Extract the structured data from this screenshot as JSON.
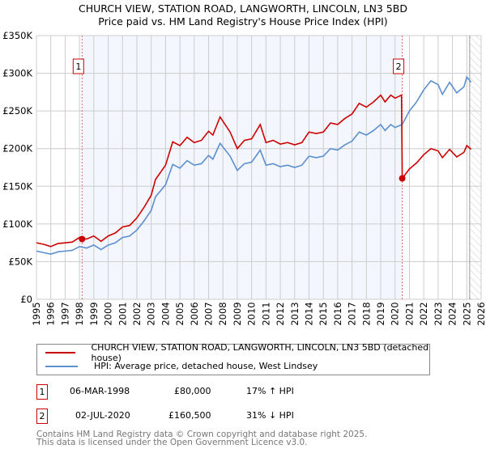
{
  "chart_data": {
    "type": "line",
    "title": "CHURCH VIEW, STATION ROAD, LANGWORTH, LINCOLN, LN3 5BD",
    "subtitle": "Price paid vs. HM Land Registry's House Price Index (HPI)",
    "xlim": [
      1995,
      2026
    ],
    "ylim": [
      0,
      350000
    ],
    "x_ticks": [
      "1995",
      "1996",
      "1997",
      "1998",
      "1999",
      "2000",
      "2001",
      "2002",
      "2003",
      "2004",
      "2005",
      "2006",
      "2007",
      "2008",
      "2009",
      "2010",
      "2011",
      "2012",
      "2013",
      "2014",
      "2015",
      "2016",
      "2017",
      "2018",
      "2019",
      "2020",
      "2021",
      "2022",
      "2023",
      "2024",
      "2025",
      "2026"
    ],
    "y_ticks": [
      {
        "v": 0,
        "label": "£0"
      },
      {
        "v": 50000,
        "label": "£50K"
      },
      {
        "v": 100000,
        "label": "£100K"
      },
      {
        "v": 150000,
        "label": "£150K"
      },
      {
        "v": 200000,
        "label": "£200K"
      },
      {
        "v": 250000,
        "label": "£250K"
      },
      {
        "v": 300000,
        "label": "£300K"
      },
      {
        "v": 350000,
        "label": "£350K"
      }
    ],
    "grid": true,
    "shaded_period": [
      1998.18,
      2020.5
    ],
    "forecast_hatch_from": 2025.2,
    "series": [
      {
        "name": "CHURCH VIEW, STATION ROAD, LANGWORTH, LINCOLN, LN3 5BD (detached house)",
        "color": "#cc0000",
        "x": [
          1995,
          1995.5,
          1996,
          1996.5,
          1997,
          1997.5,
          1998,
          1998.18,
          1998.5,
          1999,
          1999.5,
          2000,
          2000.5,
          2001,
          2001.5,
          2002,
          2002.5,
          2003,
          2003.3,
          2004,
          2004.5,
          2005,
          2005.5,
          2006,
          2006.5,
          2007,
          2007.3,
          2007.8,
          2008.5,
          2009,
          2009.5,
          2010,
          2010.6,
          2011,
          2011.5,
          2012,
          2012.5,
          2013,
          2013.5,
          2014,
          2014.5,
          2015,
          2015.5,
          2016,
          2016.5,
          2017,
          2017.5,
          2018,
          2018.5,
          2019,
          2019.3,
          2019.7,
          2020,
          2020.45,
          2020.5,
          2021,
          2021.5,
          2022,
          2022.5,
          2023,
          2023.3,
          2023.8,
          2024.3,
          2024.8,
          2025,
          2025.3
        ],
        "y": [
          75,
          73,
          70,
          74,
          75,
          76,
          82,
          80,
          80,
          84,
          77,
          84,
          88,
          96,
          98,
          108,
          122,
          138,
          159,
          178,
          209,
          204,
          215,
          208,
          211,
          223,
          218,
          242,
          222,
          200,
          211,
          213,
          232,
          208,
          211,
          206,
          208,
          205,
          208,
          222,
          220,
          222,
          234,
          232,
          240,
          246,
          260,
          255,
          262,
          271,
          262,
          271,
          267,
          271,
          160.5,
          173,
          181,
          192,
          200,
          197,
          188,
          199,
          189,
          195,
          204,
          199
        ]
      },
      {
        "name": "HPI: Average price, detached house, West Lindsey",
        "color": "#5b8fd0",
        "x": [
          1995,
          1995.5,
          1996,
          1996.5,
          1997,
          1997.5,
          1998,
          1998.5,
          1999,
          1999.5,
          2000,
          2000.5,
          2001,
          2001.5,
          2002,
          2002.5,
          2003,
          2003.3,
          2004,
          2004.5,
          2005,
          2005.5,
          2006,
          2006.5,
          2007,
          2007.3,
          2007.8,
          2008.5,
          2009,
          2009.5,
          2010,
          2010.6,
          2011,
          2011.5,
          2012,
          2012.5,
          2013,
          2013.5,
          2014,
          2014.5,
          2015,
          2015.5,
          2016,
          2016.5,
          2017,
          2017.5,
          2018,
          2018.5,
          2019,
          2019.3,
          2019.7,
          2020,
          2020.5,
          2021,
          2021.5,
          2022,
          2022.5,
          2023,
          2023.3,
          2023.8,
          2024.3,
          2024.8,
          2025,
          2025.3
        ],
        "y": [
          64,
          62,
          60,
          63,
          64,
          65,
          70,
          68,
          72,
          66,
          72,
          75,
          82,
          84,
          92,
          104,
          118,
          136,
          152,
          179,
          174,
          184,
          178,
          180,
          191,
          186,
          207,
          190,
          171,
          180,
          182,
          198,
          178,
          180,
          176,
          178,
          175,
          178,
          190,
          188,
          190,
          200,
          198,
          205,
          210,
          222,
          218,
          224,
          232,
          224,
          232,
          228,
          232,
          250,
          262,
          278,
          290,
          285,
          272,
          288,
          274,
          282,
          295,
          288
        ]
      }
    ],
    "y_unit": "thousands GBP",
    "markers": [
      {
        "label": "1",
        "x": 1998.18,
        "y": 80
      },
      {
        "label": "2",
        "x": 2020.5,
        "y": 160.5
      }
    ]
  },
  "legend": {
    "red": "CHURCH VIEW, STATION ROAD, LANGWORTH, LINCOLN, LN3 5BD (detached house)",
    "blue": "HPI: Average price, detached house, West Lindsey"
  },
  "sales": [
    {
      "num": "1",
      "date": "06-MAR-1998",
      "price": "£80,000",
      "hpi": "17% ↑ HPI"
    },
    {
      "num": "2",
      "date": "02-JUL-2020",
      "price": "£160,500",
      "hpi": "31% ↓ HPI"
    }
  ],
  "footer": {
    "line1": "Contains HM Land Registry data © Crown copyright and database right 2025.",
    "line2": "This data is licensed under the Open Government Licence v3.0."
  }
}
